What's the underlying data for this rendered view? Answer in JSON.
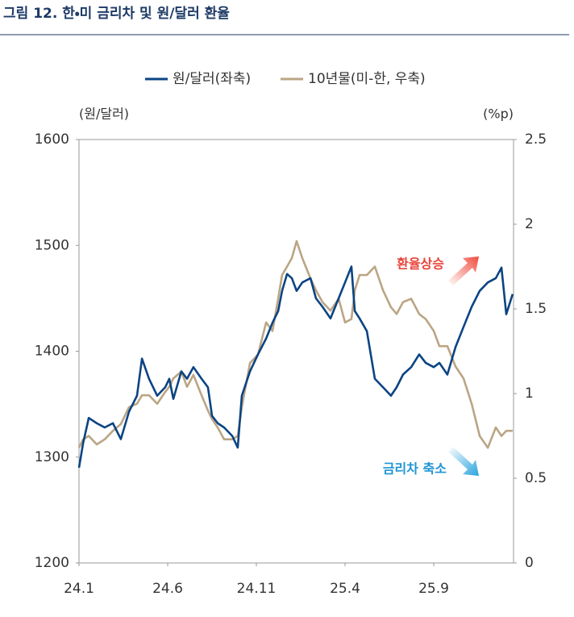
{
  "chart_data": {
    "type": "line",
    "title": "그림 12. 한・미 금리차 및 원/달러 환율",
    "y_label": "(원/달러)",
    "y2_label": "(%p)",
    "annotations": [
      "환율상승",
      "금리차 축소"
    ],
    "x": [
      0,
      0.23,
      0.55,
      1,
      1.45,
      1.91,
      2.36,
      2.82,
      3.27,
      3.55,
      3.95,
      4.41,
      4.86,
      5.09,
      5.32,
      5.77,
      6.09,
      6.45,
      6.91,
      7.27,
      7.5,
      7.82,
      8.18,
      8.64,
      8.95,
      9.18,
      9.64,
      10.09,
      10.55,
      10.91,
      11.23,
      11.45,
      11.73,
      12,
      12.27,
      12.59,
      13.05,
      13.36,
      13.73,
      14.18,
      14.64,
      15,
      15.36,
      15.55,
      15.82,
      16.23,
      16.68,
      17.14,
      17.59,
      17.91,
      18.27,
      18.73,
      19.18,
      19.55,
      20,
      20.32,
      20.77,
      21.23,
      21.68,
      22.14,
      22.59,
      23.05,
      23.5,
      23.82,
      24.09,
      24.45
    ],
    "xlim": [
      0,
      24.5
    ],
    "xticks": [
      {
        "value": 0,
        "label": "24.1"
      },
      {
        "value": 5,
        "label": "24.6"
      },
      {
        "value": 10,
        "label": "24.11"
      },
      {
        "value": 15,
        "label": "25.4"
      },
      {
        "value": 20,
        "label": "25.9"
      }
    ],
    "ylim": [
      1200,
      1600
    ],
    "yticks": [
      1200,
      1300,
      1400,
      1500,
      1600
    ],
    "y2lim": [
      0,
      2.5
    ],
    "y2ticks": [
      0,
      0.5,
      1,
      1.5,
      2,
      2.5
    ],
    "series": [
      {
        "name": "원/달러(좌축)",
        "color": "#0b4483",
        "axis": "y",
        "values": [
          1290,
          1313,
          1337,
          1332,
          1328,
          1332,
          1317,
          1343,
          1358,
          1393,
          1374,
          1358,
          1366,
          1374,
          1355,
          1381,
          1374,
          1385,
          1374,
          1366,
          1339,
          1332,
          1328,
          1320,
          1309,
          1358,
          1381,
          1397,
          1412,
          1427,
          1438,
          1457,
          1473,
          1469,
          1457,
          1465,
          1469,
          1450,
          1442,
          1431,
          1450,
          1465,
          1480,
          1438,
          1431,
          1419,
          1374,
          1366,
          1358,
          1366,
          1378,
          1385,
          1397,
          1389,
          1385,
          1389,
          1378,
          1404,
          1423,
          1442,
          1457,
          1465,
          1469,
          1479,
          1435,
          1454
        ]
      },
      {
        "name": "10년물(미-한, 우축)",
        "color": "#bba584",
        "axis": "y2",
        "values": [
          0.68,
          0.73,
          0.75,
          0.7,
          0.73,
          0.78,
          0.82,
          0.92,
          0.94,
          0.99,
          0.99,
          0.94,
          1.01,
          1.04,
          1.09,
          1.13,
          1.04,
          1.11,
          0.99,
          0.9,
          0.85,
          0.8,
          0.73,
          0.73,
          0.75,
          0.92,
          1.18,
          1.23,
          1.42,
          1.37,
          1.56,
          1.7,
          1.75,
          1.8,
          1.9,
          1.8,
          1.68,
          1.61,
          1.54,
          1.49,
          1.56,
          1.42,
          1.44,
          1.61,
          1.7,
          1.7,
          1.75,
          1.61,
          1.51,
          1.47,
          1.54,
          1.56,
          1.47,
          1.44,
          1.37,
          1.28,
          1.28,
          1.16,
          1.09,
          0.94,
          0.75,
          0.68,
          0.8,
          0.75,
          0.78,
          0.78
        ]
      }
    ]
  }
}
